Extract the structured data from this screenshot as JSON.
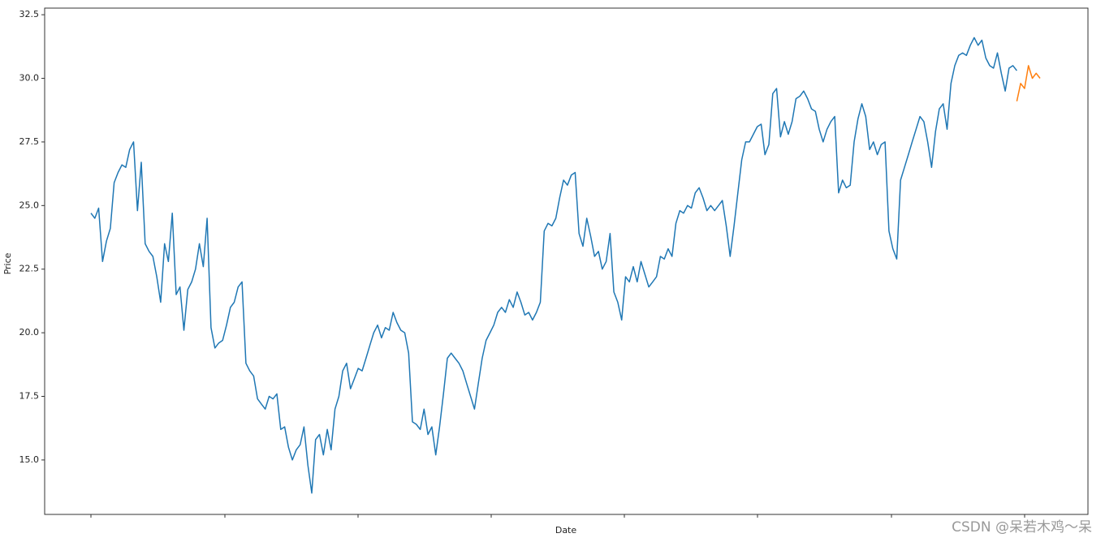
{
  "chart_data": {
    "type": "line",
    "xlabel": "Date",
    "ylabel": "Price",
    "watermark": "CSDN @呆若木鸡～呆",
    "ylim": [
      12.86,
      32.76
    ],
    "yticks": [
      {
        "value": 15,
        "label": "15.0"
      },
      {
        "value": 17.5,
        "label": "17.5"
      },
      {
        "value": 20,
        "label": "20.0"
      },
      {
        "value": 22.5,
        "label": "22.5"
      },
      {
        "value": 25,
        "label": "25.0"
      },
      {
        "value": 27.5,
        "label": "27.5"
      },
      {
        "value": 30,
        "label": "30.0"
      },
      {
        "value": 32.5,
        "label": "32.5"
      }
    ],
    "series": [
      {
        "color": "#1f77b4",
        "values": [
          24.7,
          24.5,
          24.9,
          22.8,
          23.6,
          24.1,
          25.9,
          26.3,
          26.6,
          26.5,
          27.2,
          27.5,
          24.8,
          26.7,
          23.5,
          23.2,
          23.0,
          22.2,
          21.2,
          23.5,
          22.8,
          24.7,
          21.5,
          21.8,
          20.1,
          21.7,
          22.0,
          22.5,
          23.5,
          22.6,
          24.5,
          20.2,
          19.4,
          19.6,
          19.7,
          20.3,
          21.0,
          21.2,
          21.8,
          22.0,
          18.8,
          18.5,
          18.3,
          17.4,
          17.2,
          17.0,
          17.5,
          17.4,
          17.6,
          16.2,
          16.3,
          15.5,
          15.0,
          15.4,
          15.6,
          16.3,
          14.8,
          13.7,
          15.8,
          16.0,
          15.2,
          16.2,
          15.4,
          17.0,
          17.5,
          18.5,
          18.8,
          17.8,
          18.2,
          18.6,
          18.5,
          19.0,
          19.5,
          20.0,
          20.3,
          19.8,
          20.2,
          20.1,
          20.8,
          20.4,
          20.1,
          20.0,
          19.2,
          16.5,
          16.4,
          16.2,
          17.0,
          16.0,
          16.3,
          15.2,
          16.3,
          17.6,
          19.0,
          19.2,
          19.0,
          18.8,
          18.5,
          18.0,
          17.5,
          17.0,
          18.0,
          19.0,
          19.7,
          20.0,
          20.3,
          20.8,
          21.0,
          20.8,
          21.3,
          21.0,
          21.6,
          21.2,
          20.7,
          20.8,
          20.5,
          20.8,
          21.2,
          24.0,
          24.3,
          24.2,
          24.5,
          25.3,
          26.0,
          25.8,
          26.2,
          26.3,
          23.9,
          23.4,
          24.5,
          23.8,
          23.0,
          23.2,
          22.5,
          22.8,
          23.9,
          21.6,
          21.2,
          20.5,
          22.2,
          22.0,
          22.6,
          22.0,
          22.8,
          22.3,
          21.8,
          22.0,
          22.2,
          23.0,
          22.9,
          23.3,
          23.0,
          24.3,
          24.8,
          24.7,
          25.0,
          24.9,
          25.5,
          25.7,
          25.3,
          24.8,
          25.0,
          24.8,
          25.0,
          25.2,
          24.2,
          23.0,
          24.2,
          25.5,
          26.8,
          27.5,
          27.5,
          27.8,
          28.1,
          28.2,
          27.0,
          27.4,
          29.4,
          29.6,
          27.7,
          28.3,
          27.8,
          28.3,
          29.2,
          29.3,
          29.5,
          29.2,
          28.8,
          28.7,
          28.0,
          27.5,
          28.0,
          28.3,
          28.5,
          25.5,
          26.0,
          25.7,
          25.8,
          27.5,
          28.4,
          29.0,
          28.5,
          27.2,
          27.5,
          27.0,
          27.4,
          27.5,
          24.0,
          23.3,
          22.9,
          26.0,
          26.5,
          27.0,
          27.5,
          28.0,
          28.5,
          28.3,
          27.5,
          26.5,
          27.9,
          28.8,
          29.0,
          28.0,
          29.8,
          30.5,
          30.9,
          31.0,
          30.9,
          31.3,
          31.6,
          31.3,
          31.5,
          30.8,
          30.5,
          30.4,
          31.0,
          30.2,
          29.5,
          30.4,
          30.5,
          30.3,
          null,
          null,
          null,
          null,
          null,
          null
        ]
      },
      {
        "color": "#ff7f0e",
        "values": [
          null,
          null,
          null,
          null,
          null,
          null,
          null,
          null,
          null,
          null,
          null,
          null,
          null,
          null,
          null,
          null,
          null,
          null,
          null,
          null,
          null,
          null,
          null,
          null,
          null,
          null,
          null,
          null,
          null,
          null,
          null,
          null,
          null,
          null,
          null,
          null,
          null,
          null,
          null,
          null,
          null,
          null,
          null,
          null,
          null,
          null,
          null,
          null,
          null,
          null,
          null,
          null,
          null,
          null,
          null,
          null,
          null,
          null,
          null,
          null,
          null,
          null,
          null,
          null,
          null,
          null,
          null,
          null,
          null,
          null,
          null,
          null,
          null,
          null,
          null,
          null,
          null,
          null,
          null,
          null,
          null,
          null,
          null,
          null,
          null,
          null,
          null,
          null,
          null,
          null,
          null,
          null,
          null,
          null,
          null,
          null,
          null,
          null,
          null,
          null,
          null,
          null,
          null,
          null,
          null,
          null,
          null,
          null,
          null,
          null,
          null,
          null,
          null,
          null,
          null,
          null,
          null,
          null,
          null,
          null,
          null,
          null,
          null,
          null,
          null,
          null,
          null,
          null,
          null,
          null,
          null,
          null,
          null,
          null,
          null,
          null,
          null,
          null,
          null,
          null,
          null,
          null,
          null,
          null,
          null,
          null,
          null,
          null,
          null,
          null,
          null,
          null,
          null,
          null,
          null,
          null,
          null,
          null,
          null,
          null,
          null,
          null,
          null,
          null,
          null,
          null,
          null,
          null,
          null,
          null,
          null,
          null,
          null,
          null,
          null,
          null,
          null,
          null,
          null,
          null,
          null,
          null,
          null,
          null,
          null,
          null,
          null,
          null,
          null,
          null,
          null,
          null,
          null,
          null,
          null,
          null,
          null,
          null,
          null,
          null,
          null,
          null,
          null,
          null,
          null,
          null,
          null,
          null,
          null,
          null,
          null,
          null,
          null,
          null,
          null,
          null,
          null,
          null,
          null,
          null,
          null,
          null,
          null,
          null,
          null,
          null,
          null,
          null,
          null,
          null,
          null,
          null,
          null,
          null,
          null,
          null,
          null,
          null,
          null,
          29.1,
          29.8,
          29.6,
          30.5,
          30.0,
          30.2,
          30.0
        ]
      }
    ]
  }
}
